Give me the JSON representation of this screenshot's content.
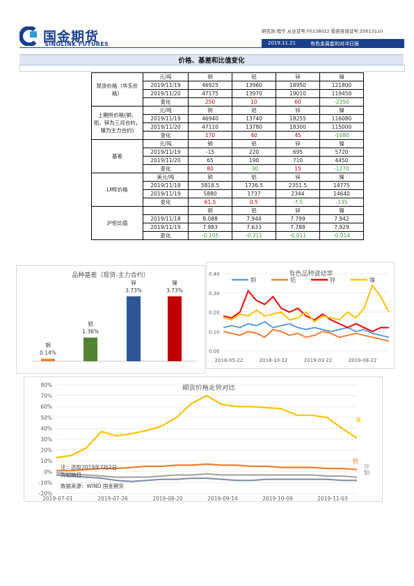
{
  "header": {
    "brand_cn": "国金期货",
    "brand_en": "SINOLINK FUTURES",
    "analyst": "研究员:程宁  从业证号:F0238022  投资咨询证号:Z0013110",
    "date": "2019.11.21",
    "report_name": "有色金属套利对冲日报"
  },
  "section": {
    "title": "价格、基差和比值变化"
  },
  "table": {
    "groups": [
      {
        "label": "现货价格（华东价格）",
        "unit": "元/吨",
        "metals": [
          "铜",
          "铝",
          "锌",
          "镍"
        ],
        "rows": [
          {
            "date": "2019/11/19",
            "v": [
              "46925",
              "13960",
              "18950",
              "121800"
            ]
          },
          {
            "date": "2019/11/20",
            "v": [
              "47175",
              "13970",
              "19010",
              "119450"
            ]
          }
        ],
        "change_label": "变化",
        "change": [
          "250",
          "10",
          "60",
          "-2350"
        ]
      },
      {
        "label": "上期所价格(铜、铝、锌为三月合约，镍为主力合约)",
        "unit": "元/吨",
        "metals": [
          "铜",
          "铝",
          "锌",
          "镍"
        ],
        "rows": [
          {
            "date": "2019/11/19",
            "v": [
              "46940",
              "13740",
              "18255",
              "116080"
            ]
          },
          {
            "date": "2019/11/20",
            "v": [
              "47110",
              "13780",
              "18300",
              "115000"
            ]
          }
        ],
        "change_label": "变化",
        "change": [
          "170",
          "40",
          "45",
          "-1080"
        ]
      },
      {
        "label": "基差",
        "unit": "元/吨",
        "metals": [
          "铜",
          "铝",
          "锌",
          "镍"
        ],
        "rows": [
          {
            "date": "2019/11/19",
            "v": [
              "-15",
              "220",
              "695",
              "5720"
            ]
          },
          {
            "date": "2019/11/20",
            "v": [
              "65",
              "190",
              "710",
              "4450"
            ]
          }
        ],
        "change_label": "变化",
        "change": [
          "80",
          "-30",
          "15",
          "-1270"
        ]
      },
      {
        "label": "LME价格",
        "unit": "美元/吨",
        "metals": [
          "铜",
          "铝",
          "锌",
          "镍"
        ],
        "rows": [
          {
            "date": "2019/11/18",
            "v": [
              "5818.5",
              "1736.5",
              "2351.5",
              "14775"
            ]
          },
          {
            "date": "2019/11/19",
            "v": [
              "5880",
              "1737",
              "2344",
              "14640"
            ]
          }
        ],
        "change_label": "变化",
        "change": [
          "61.5",
          "0.5",
          "-7.5",
          "-135"
        ]
      },
      {
        "label": "沪伦比值",
        "unit": "",
        "metals": [
          "铜",
          "铝",
          "锌",
          "镍"
        ],
        "rows": [
          {
            "date": "2019/11/18",
            "v": [
              "8.088",
              "7.944",
              "7.799",
              "7.942"
            ]
          },
          {
            "date": "2019/11/19",
            "v": [
              "7.983",
              "7.633",
              "7.788",
              "7.929"
            ]
          }
        ],
        "change_label": "变化",
        "change": [
          "-0.105",
          "-0.311",
          "-0.011",
          "-0.014"
        ]
      }
    ]
  },
  "colors": {
    "copper": "#5b9bd5",
    "aluminum": "#ed7d31",
    "zinc": "#ff0000",
    "nickel": "#ffc000",
    "positive": "#c00000",
    "negative": "#3a9b3a",
    "brand": "#1b3f8b"
  },
  "chart_data": [
    {
      "type": "bar",
      "title": "品种基差（现货-主力合约）",
      "categories": [
        "铜",
        "铝",
        "锌",
        "镍"
      ],
      "values": [
        0.14,
        1.36,
        3.73,
        3.73
      ],
      "data_labels": [
        "0.14%",
        "1.36%",
        "3.73%",
        "3.73%"
      ],
      "bar_colors": [
        "#ed7d31",
        "#548235",
        "#2f5597",
        "#c00000"
      ]
    },
    {
      "type": "line",
      "title": "有色品种波动率",
      "series": [
        {
          "name": "铜"
        },
        {
          "name": "铝"
        },
        {
          "name": "锌"
        },
        {
          "name": "镍"
        }
      ],
      "x_ticks": [
        "2018-05-22",
        "2018-10-22",
        "2019-03-22",
        "2019-08-22"
      ],
      "y_ticks": [
        "0.00",
        "0.10",
        "0.20",
        "0.30",
        "0.40"
      ],
      "ylim": [
        0,
        0.4
      ],
      "x": [
        0,
        0.05,
        0.1,
        0.15,
        0.2,
        0.25,
        0.3,
        0.35,
        0.4,
        0.45,
        0.5,
        0.55,
        0.6,
        0.65,
        0.7,
        0.75,
        0.8,
        0.85,
        0.9,
        0.95,
        1.0
      ],
      "values": {
        "铜": [
          0.12,
          0.13,
          0.12,
          0.14,
          0.13,
          0.15,
          0.12,
          0.13,
          0.14,
          0.12,
          0.11,
          0.12,
          0.11,
          0.1,
          0.11,
          0.12,
          0.1,
          0.11,
          0.09,
          0.08,
          0.07
        ],
        "铝": [
          0.1,
          0.09,
          0.08,
          0.1,
          0.09,
          0.07,
          0.11,
          0.1,
          0.08,
          0.09,
          0.07,
          0.08,
          0.1,
          0.09,
          0.07,
          0.08,
          0.09,
          0.08,
          0.07,
          0.06,
          0.05
        ],
        "锌": [
          0.18,
          0.17,
          0.2,
          0.31,
          0.26,
          0.24,
          0.28,
          0.22,
          0.2,
          0.22,
          0.18,
          0.16,
          0.19,
          0.16,
          0.14,
          0.12,
          0.14,
          0.12,
          0.1,
          0.12,
          0.12
        ],
        "镍": [
          0.17,
          0.16,
          0.19,
          0.18,
          0.21,
          0.18,
          0.19,
          0.2,
          0.16,
          0.17,
          0.2,
          0.15,
          0.18,
          0.17,
          0.16,
          0.2,
          0.17,
          0.22,
          0.34,
          0.28,
          0.2
        ]
      }
    },
    {
      "type": "line",
      "title": "期货价格走势对比",
      "series": [
        {
          "name": "镍"
        },
        {
          "name": "铝"
        },
        {
          "name": "锌"
        },
        {
          "name": "铜"
        }
      ],
      "end_labels": [
        "镍",
        "铝",
        "锌",
        "铜"
      ],
      "x_ticks": [
        "2019-07-01",
        "2019-07-26",
        "2019-08-20",
        "2019-09-14",
        "2019-10-09",
        "2019-11-03"
      ],
      "y_ticks": [
        "80%",
        "70%",
        "60%",
        "50%",
        "40%",
        "30%",
        "20%",
        "10%",
        "0%",
        "-10%",
        "-20%"
      ],
      "ylim": [
        -20,
        80
      ],
      "x": [
        0,
        0.05,
        0.1,
        0.15,
        0.2,
        0.25,
        0.3,
        0.35,
        0.4,
        0.45,
        0.5,
        0.55,
        0.6,
        0.65,
        0.7,
        0.75,
        0.8,
        0.85,
        0.9,
        0.95,
        1.0
      ],
      "values": {
        "镍": [
          13,
          15,
          22,
          37,
          33,
          35,
          38,
          42,
          50,
          63,
          70,
          62,
          60,
          60,
          59,
          58,
          52,
          52,
          50,
          40,
          31
        ],
        "铝": [
          1,
          1,
          2,
          3,
          3,
          4,
          5,
          5,
          6,
          6,
          7,
          6,
          6,
          5,
          5,
          4,
          4,
          4,
          3,
          3,
          2
        ],
        "锌": [
          -1,
          -2,
          -3,
          -4,
          -5,
          -5,
          -5,
          -4,
          -3,
          -3,
          -2,
          -3,
          -3,
          -3,
          -3,
          -3,
          -3,
          -3,
          -4,
          -4,
          -5
        ],
        "铜": [
          -3,
          -4,
          -5,
          -6,
          -8,
          -9,
          -8,
          -7,
          -7,
          -6,
          -6,
          -7,
          -8,
          -8,
          -7,
          -7,
          -7,
          -7,
          -7,
          -8,
          -8
        ]
      },
      "note": "注：选取2019年7月2日为初始日",
      "source": "数据来源：WIND 国金期货"
    }
  ]
}
